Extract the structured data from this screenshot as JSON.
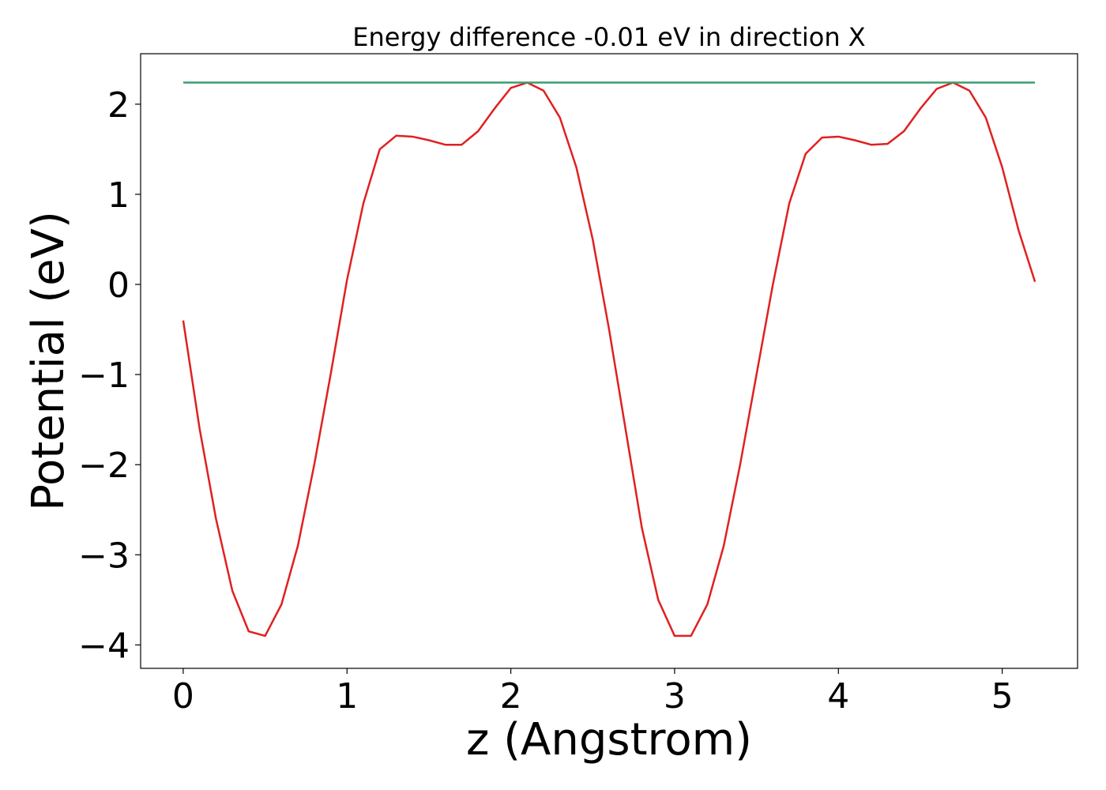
{
  "chart_data": {
    "type": "line",
    "title": "Energy difference -0.01 eV in direction X",
    "xlabel": "z (Angstrom)",
    "ylabel": "Potential (eV)",
    "xlim": [
      -0.26,
      5.46
    ],
    "ylim": [
      -4.26,
      2.56
    ],
    "xticks": [
      0,
      1,
      2,
      3,
      4,
      5
    ],
    "yticks": [
      {
        "value": -4,
        "label": "−4"
      },
      {
        "value": -3,
        "label": "−3"
      },
      {
        "value": -2,
        "label": "−2"
      },
      {
        "value": -1,
        "label": "−1"
      },
      0,
      1,
      2
    ],
    "series": [
      {
        "color": "#e02020",
        "x": [
          0,
          0.1,
          0.2,
          0.3,
          0.4,
          0.5,
          0.6,
          0.7,
          0.8,
          0.9,
          1.0,
          1.1,
          1.2,
          1.3,
          1.4,
          1.5,
          1.6,
          1.7,
          1.8,
          1.9,
          2.0,
          2.1,
          2.2,
          2.3,
          2.4,
          2.5,
          2.6,
          2.7,
          2.8,
          2.9,
          3.0,
          3.1,
          3.2,
          3.3,
          3.4,
          3.5,
          3.6,
          3.7,
          3.8,
          3.9,
          4.0,
          4.1,
          4.2,
          4.3,
          4.4,
          4.5,
          4.6,
          4.7,
          4.8,
          4.9,
          5.0,
          5.1,
          5.2
        ],
        "values": [
          -0.4,
          -1.6,
          -2.6,
          -3.4,
          -3.85,
          -3.9,
          -3.55,
          -2.9,
          -2.0,
          -1.0,
          0.05,
          0.9,
          1.5,
          1.65,
          1.64,
          1.6,
          1.55,
          1.55,
          1.7,
          1.95,
          2.18,
          2.24,
          2.15,
          1.85,
          1.3,
          0.5,
          -0.5,
          -1.6,
          -2.7,
          -3.5,
          -3.9,
          -3.9,
          -3.55,
          -2.9,
          -2.0,
          -1.0,
          0.0,
          0.9,
          1.45,
          1.63,
          1.64,
          1.6,
          1.55,
          1.56,
          1.7,
          1.95,
          2.17,
          2.24,
          2.15,
          1.85,
          1.3,
          0.6,
          0.03
        ]
      },
      {
        "color": "#3c9e6e",
        "x": [
          0,
          5.2
        ],
        "values": [
          2.24,
          2.24
        ]
      }
    ]
  }
}
